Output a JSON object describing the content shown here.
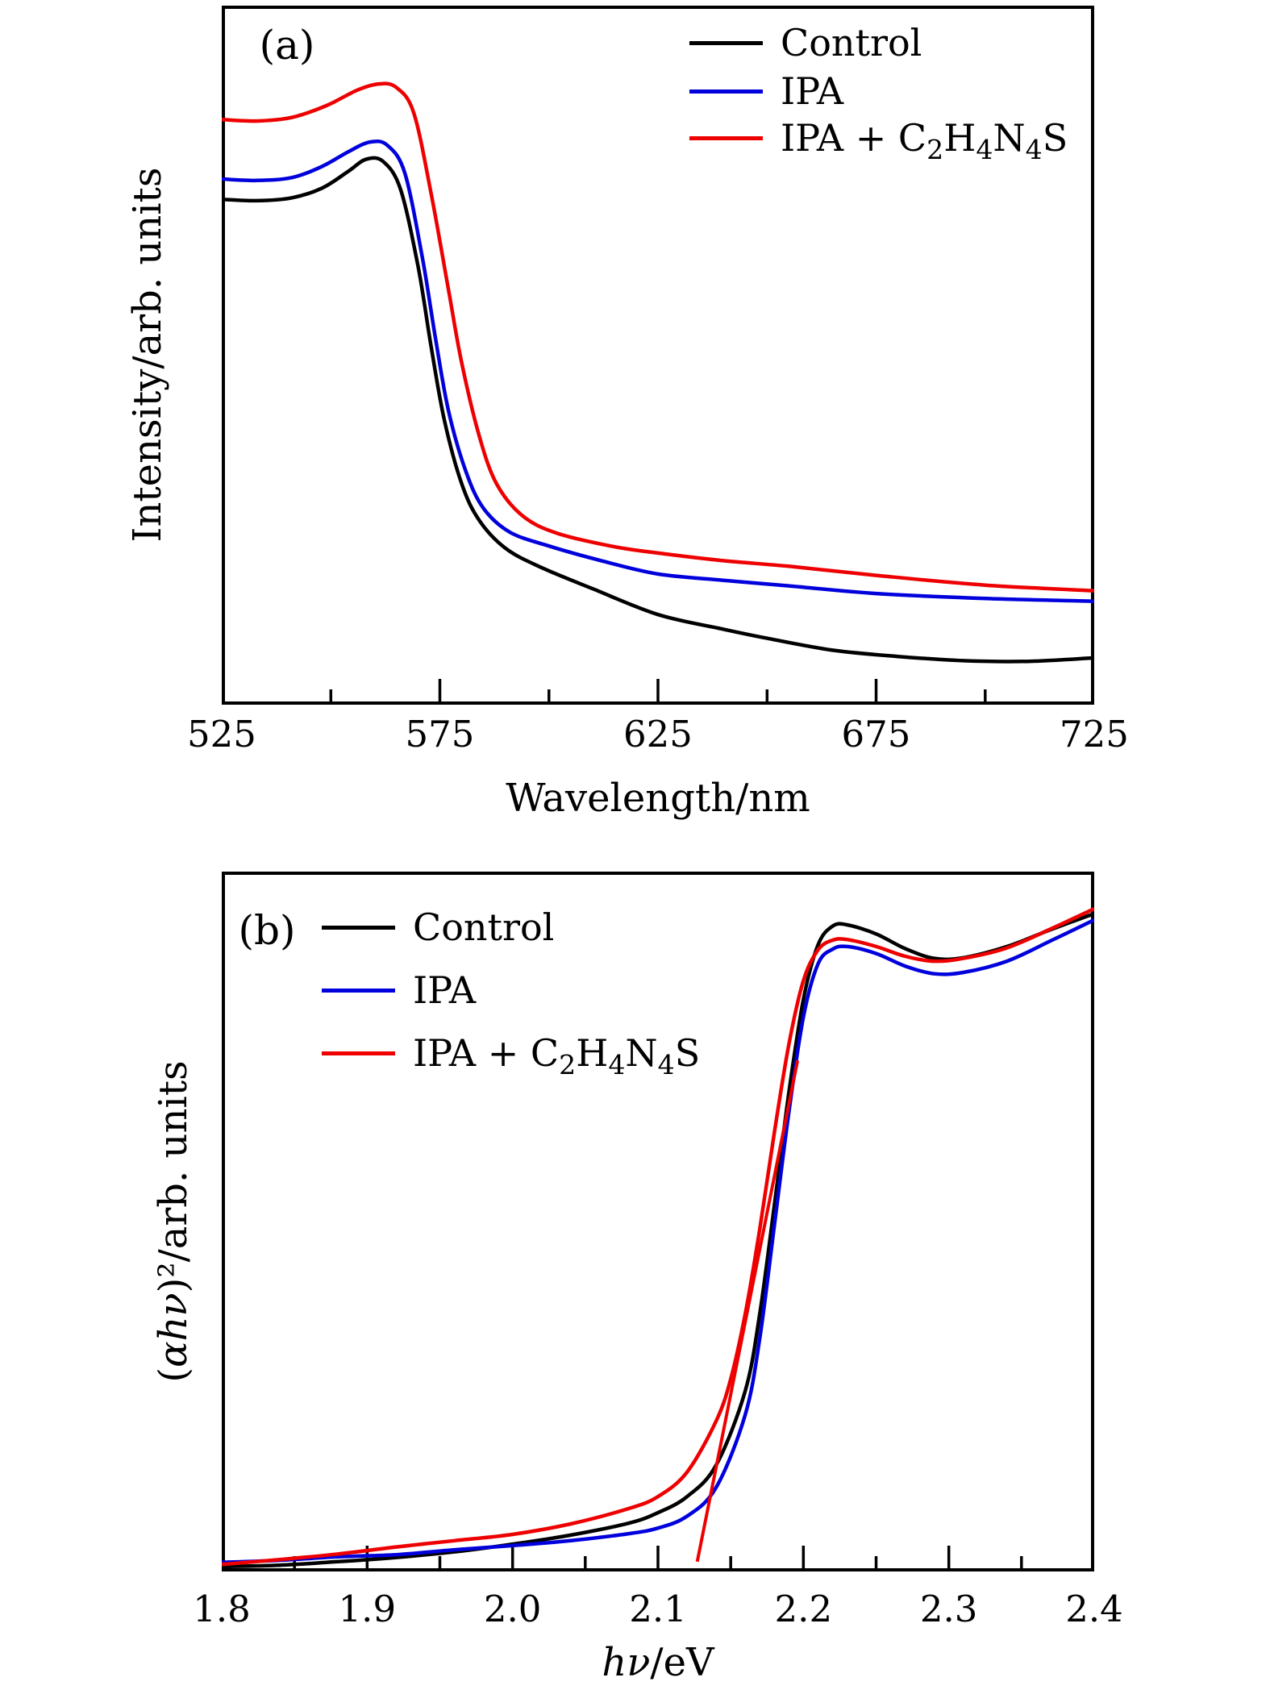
{
  "figure": {
    "background": "#ffffff",
    "colors": {
      "control": "#000000",
      "ipa": "#0000dd",
      "ipa_c2h4n4s": "#ee0000",
      "frame": "#000000"
    },
    "panel_a": {
      "tag": "(a)",
      "ylabel": "Intensity/arb. units",
      "xlabel": "Wavelength/nm",
      "legend": [
        {
          "key": "control",
          "p0": "Control"
        },
        {
          "key": "ipa",
          "p0": "IPA"
        },
        {
          "key": "ipa_c2h4n4s",
          "p0": "IPA + C",
          "p1": "2",
          "p2": "H",
          "p3": "4",
          "p4": "N",
          "p5": "4",
          "p6": "S"
        }
      ]
    },
    "panel_b": {
      "tag": "(b)",
      "ylabel_parts": {
        "pre": "(",
        "math": "αhν",
        "post": ")²/arb. units"
      },
      "xlabel_parts": {
        "math": "hν",
        "post": "/eV"
      },
      "legend": [
        {
          "key": "control",
          "p0": "Control"
        },
        {
          "key": "ipa",
          "p0": "IPA"
        },
        {
          "key": "ipa_c2h4n4s",
          "p0": "IPA + C",
          "p1": "2",
          "p2": "H",
          "p3": "4",
          "p4": "N",
          "p5": "4",
          "p6": "S"
        }
      ]
    }
  },
  "chart_data": [
    {
      "type": "line",
      "title": "(a)",
      "xlabel": "Wavelength/nm",
      "ylabel": "Intensity/arb. units",
      "xlim": [
        525,
        725
      ],
      "ylim": [
        0,
        1
      ],
      "grid": false,
      "tick_direction": "in",
      "legend_position": "top-right",
      "x_major_ticks": [
        525,
        575,
        625,
        675,
        725
      ],
      "x_tick_labels": [
        "525",
        "575",
        "625",
        "675",
        "725"
      ],
      "x_minor_ticks": [
        550,
        600,
        650,
        700
      ],
      "y_axis_units": "arbitrary (unlabeled)",
      "series": [
        {
          "name": "Control",
          "color": "#000000",
          "points": [
            [
              525,
              0.723
            ],
            [
              533,
              0.721
            ],
            [
              541,
              0.725
            ],
            [
              548,
              0.739
            ],
            [
              554,
              0.763
            ],
            [
              558,
              0.78
            ],
            [
              562,
              0.777
            ],
            [
              566,
              0.737
            ],
            [
              570,
              0.627
            ],
            [
              573,
              0.512
            ],
            [
              576,
              0.408
            ],
            [
              580,
              0.316
            ],
            [
              584,
              0.264
            ],
            [
              590,
              0.224
            ],
            [
              598,
              0.197
            ],
            [
              610,
              0.166
            ],
            [
              625,
              0.129
            ],
            [
              640,
              0.108
            ],
            [
              650,
              0.095
            ],
            [
              665,
              0.078
            ],
            [
              680,
              0.069
            ],
            [
              695,
              0.063
            ],
            [
              710,
              0.062
            ],
            [
              725,
              0.067
            ]
          ]
        },
        {
          "name": "IPA",
          "color": "#0000dd",
          "points": [
            [
              525,
              0.752
            ],
            [
              533,
              0.75
            ],
            [
              541,
              0.754
            ],
            [
              548,
              0.77
            ],
            [
              554,
              0.791
            ],
            [
              559,
              0.805
            ],
            [
              563,
              0.8
            ],
            [
              567,
              0.76
            ],
            [
              571,
              0.639
            ],
            [
              574,
              0.524
            ],
            [
              577,
              0.42
            ],
            [
              581,
              0.333
            ],
            [
              585,
              0.281
            ],
            [
              591,
              0.247
            ],
            [
              600,
              0.227
            ],
            [
              612,
              0.206
            ],
            [
              625,
              0.187
            ],
            [
              640,
              0.178
            ],
            [
              655,
              0.17
            ],
            [
              675,
              0.159
            ],
            [
              700,
              0.152
            ],
            [
              725,
              0.148
            ]
          ]
        },
        {
          "name": "IPA + C₂H₄N₄S",
          "color": "#ee0000",
          "points": [
            [
              525,
              0.837
            ],
            [
              533,
              0.835
            ],
            [
              541,
              0.84
            ],
            [
              549,
              0.857
            ],
            [
              556,
              0.879
            ],
            [
              561,
              0.888
            ],
            [
              565,
              0.883
            ],
            [
              569,
              0.847
            ],
            [
              573,
              0.731
            ],
            [
              577,
              0.593
            ],
            [
              580,
              0.489
            ],
            [
              584,
              0.385
            ],
            [
              588,
              0.316
            ],
            [
              594,
              0.27
            ],
            [
              602,
              0.245
            ],
            [
              615,
              0.226
            ],
            [
              625,
              0.217
            ],
            [
              640,
              0.206
            ],
            [
              655,
              0.198
            ],
            [
              675,
              0.185
            ],
            [
              700,
              0.171
            ],
            [
              725,
              0.163
            ]
          ]
        }
      ]
    },
    {
      "type": "line",
      "title": "(b)",
      "xlabel": "hν/eV",
      "ylabel": "(αhν)²/arb. units",
      "xlim": [
        1.8,
        2.4
      ],
      "ylim": [
        0,
        1
      ],
      "grid": false,
      "tick_direction": "in",
      "legend_position": "top-left",
      "x_major_ticks": [
        1.8,
        1.9,
        2.0,
        2.1,
        2.2,
        2.3,
        2.4
      ],
      "x_tick_labels": [
        "1.8",
        "1.9",
        "2.0",
        "2.1",
        "2.2",
        "2.3",
        "2.4"
      ],
      "x_minor_ticks": [
        1.85,
        1.95,
        2.05,
        2.15,
        2.25,
        2.35
      ],
      "y_axis_units": "arbitrary (unlabeled)",
      "series": [
        {
          "name": "Control",
          "color": "#000000",
          "points": [
            [
              1.8,
              0.007
            ],
            [
              1.84,
              0.009
            ],
            [
              1.88,
              0.014
            ],
            [
              1.92,
              0.02
            ],
            [
              1.96,
              0.028
            ],
            [
              2.0,
              0.039
            ],
            [
              2.04,
              0.052
            ],
            [
              2.08,
              0.069
            ],
            [
              2.1,
              0.084
            ],
            [
              2.12,
              0.107
            ],
            [
              2.14,
              0.152
            ],
            [
              2.16,
              0.258
            ],
            [
              2.17,
              0.368
            ],
            [
              2.18,
              0.523
            ],
            [
              2.19,
              0.684
            ],
            [
              2.2,
              0.817
            ],
            [
              2.21,
              0.895
            ],
            [
              2.22,
              0.922
            ],
            [
              2.23,
              0.924
            ],
            [
              2.25,
              0.911
            ],
            [
              2.27,
              0.89
            ],
            [
              2.29,
              0.876
            ],
            [
              2.31,
              0.877
            ],
            [
              2.34,
              0.893
            ],
            [
              2.37,
              0.917
            ],
            [
              2.4,
              0.94
            ]
          ]
        },
        {
          "name": "IPA",
          "color": "#0000dd",
          "points": [
            [
              1.8,
              0.013
            ],
            [
              1.84,
              0.016
            ],
            [
              1.88,
              0.021
            ],
            [
              1.92,
              0.024
            ],
            [
              1.96,
              0.031
            ],
            [
              2.0,
              0.037
            ],
            [
              2.04,
              0.044
            ],
            [
              2.08,
              0.054
            ],
            [
              2.1,
              0.062
            ],
            [
              2.12,
              0.079
            ],
            [
              2.14,
              0.12
            ],
            [
              2.16,
              0.224
            ],
            [
              2.17,
              0.333
            ],
            [
              2.18,
              0.494
            ],
            [
              2.19,
              0.656
            ],
            [
              2.2,
              0.792
            ],
            [
              2.21,
              0.868
            ],
            [
              2.22,
              0.889
            ],
            [
              2.23,
              0.893
            ],
            [
              2.25,
              0.883
            ],
            [
              2.27,
              0.865
            ],
            [
              2.29,
              0.854
            ],
            [
              2.31,
              0.856
            ],
            [
              2.34,
              0.872
            ],
            [
              2.37,
              0.901
            ],
            [
              2.4,
              0.931
            ]
          ]
        },
        {
          "name": "IPA + C₂H₄N₄S",
          "color": "#ee0000",
          "points": [
            [
              1.8,
              0.01
            ],
            [
              1.84,
              0.017
            ],
            [
              1.88,
              0.025
            ],
            [
              1.92,
              0.035
            ],
            [
              1.96,
              0.044
            ],
            [
              2.0,
              0.053
            ],
            [
              2.04,
              0.068
            ],
            [
              2.08,
              0.09
            ],
            [
              2.1,
              0.107
            ],
            [
              2.12,
              0.142
            ],
            [
              2.14,
              0.215
            ],
            [
              2.15,
              0.275
            ],
            [
              2.16,
              0.368
            ],
            [
              2.17,
              0.489
            ],
            [
              2.18,
              0.627
            ],
            [
              2.19,
              0.753
            ],
            [
              2.2,
              0.844
            ],
            [
              2.21,
              0.888
            ],
            [
              2.22,
              0.902
            ],
            [
              2.23,
              0.903
            ],
            [
              2.25,
              0.893
            ],
            [
              2.27,
              0.879
            ],
            [
              2.29,
              0.872
            ],
            [
              2.31,
              0.876
            ],
            [
              2.34,
              0.891
            ],
            [
              2.37,
              0.918
            ],
            [
              2.4,
              0.947
            ]
          ]
        }
      ],
      "annotation_line": {
        "name": "tauc-extrapolation",
        "color": "#ee0000",
        "from": [
          2.127,
          0.014
        ],
        "to": [
          2.196,
          0.73
        ]
      }
    }
  ]
}
